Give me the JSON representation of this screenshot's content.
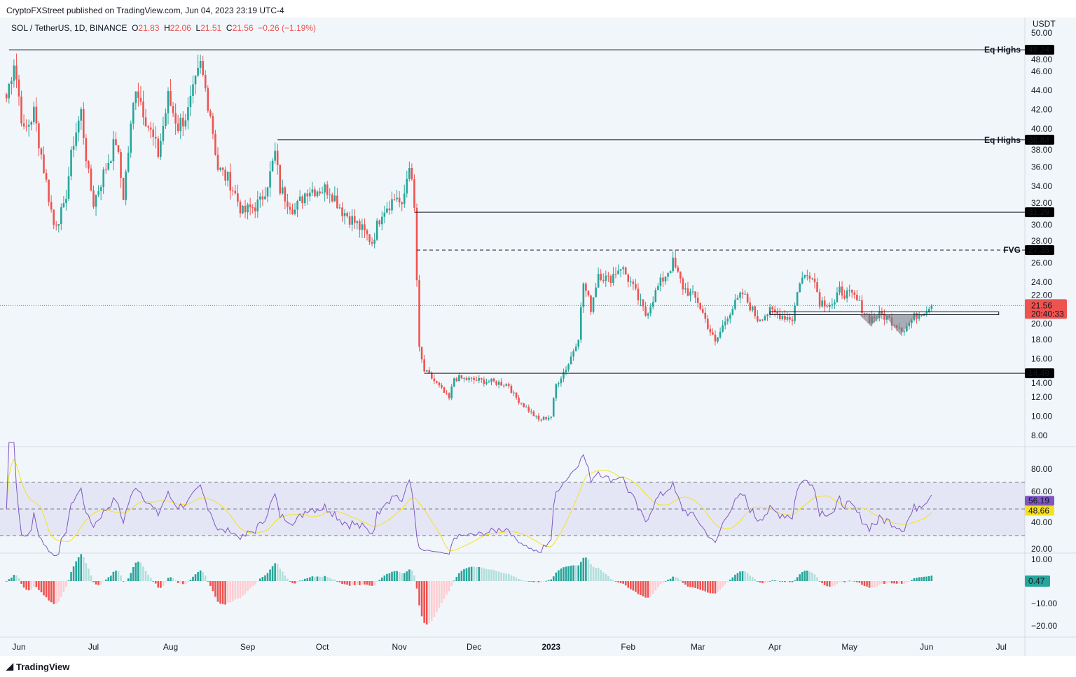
{
  "header": {
    "published": "CryptoFXStreet published on TradingView.com, Jun 04, 2023 23:19 UTC-4"
  },
  "legend": {
    "symbol": "SOL / TetherUS, 1D, BINANCE",
    "o_label": "O",
    "o": "21.83",
    "h_label": "H",
    "h": "22.06",
    "l_label": "L",
    "l": "21.51",
    "c_label": "C",
    "c": "21.56",
    "change": "−0.26 (−1.19%)"
  },
  "footer": {
    "brand": "TradingView"
  },
  "colors": {
    "up": "#26a69a",
    "down": "#ef5350",
    "rsi": "#7e57c2",
    "rsi_ma": "#f5e11f",
    "fvg": "#43a047",
    "eq": "#e53935"
  },
  "chart_data": {
    "type": "candlestick",
    "currency": "USDT",
    "price_axis": {
      "ticks": [
        "50.00",
        "48.00",
        "46.00",
        "44.00",
        "42.00",
        "40.00",
        "38.00",
        "36.00",
        "34.00",
        "32.00",
        "30.00",
        "28.00",
        "26.00",
        "24.00",
        "22.00",
        "20.00",
        "18.00",
        "16.00",
        "14.00",
        "12.00",
        "10.00",
        "8.00"
      ],
      "range": [
        8,
        50
      ]
    },
    "time_axis": {
      "unit": "days since 2022-06-01",
      "labels": [
        {
          "t": 0,
          "label": "Jun"
        },
        {
          "t": 30,
          "label": "Jul"
        },
        {
          "t": 61,
          "label": "Aug"
        },
        {
          "t": 92,
          "label": "Sep"
        },
        {
          "t": 122,
          "label": "Oct"
        },
        {
          "t": 153,
          "label": "Nov"
        },
        {
          "t": 183,
          "label": "Dec"
        },
        {
          "t": 214,
          "label": "2023",
          "bold": true
        },
        {
          "t": 245,
          "label": "Feb"
        },
        {
          "t": 273,
          "label": "Mar"
        },
        {
          "t": 304,
          "label": "Apr"
        },
        {
          "t": 334,
          "label": "May"
        },
        {
          "t": 365,
          "label": "Jun"
        },
        {
          "t": 395,
          "label": "Jul"
        }
      ]
    },
    "close_waypoints": [
      [
        -5,
        43.2
      ],
      [
        -2,
        47.2
      ],
      [
        2,
        39.5
      ],
      [
        6,
        41.7
      ],
      [
        11,
        34.4
      ],
      [
        14,
        30
      ],
      [
        18,
        31.5
      ],
      [
        22,
        38.8
      ],
      [
        25,
        41.7
      ],
      [
        28,
        35
      ],
      [
        30,
        32.3
      ],
      [
        35,
        36
      ],
      [
        39,
        38.8
      ],
      [
        42,
        33
      ],
      [
        47,
        44.7
      ],
      [
        52,
        40.3
      ],
      [
        56,
        37.4
      ],
      [
        60,
        43.2
      ],
      [
        64,
        40.3
      ],
      [
        68,
        41.7
      ],
      [
        73,
        46.5
      ],
      [
        77,
        41.7
      ],
      [
        80,
        35.9
      ],
      [
        85,
        34.4
      ],
      [
        90,
        31.2
      ],
      [
        97,
        32.3
      ],
      [
        101,
        35.2
      ],
      [
        103,
        37.4
      ],
      [
        105,
        33.7
      ],
      [
        111,
        31.5
      ],
      [
        116,
        33.7
      ],
      [
        125,
        33.7
      ],
      [
        130,
        31.5
      ],
      [
        136,
        30
      ],
      [
        142,
        28.2
      ],
      [
        146,
        31.5
      ],
      [
        152,
        33
      ],
      [
        154,
        31.5
      ],
      [
        157,
        36.6
      ],
      [
        159,
        31.5
      ],
      [
        160,
        24.2
      ],
      [
        161,
        16.9
      ],
      [
        163,
        14.7
      ],
      [
        166,
        14
      ],
      [
        173,
        11.8
      ],
      [
        175,
        14
      ],
      [
        190,
        13.6
      ],
      [
        197,
        13.3
      ],
      [
        199,
        12.2
      ],
      [
        209,
        9.6
      ],
      [
        214,
        10
      ],
      [
        216,
        13.3
      ],
      [
        221,
        15.5
      ],
      [
        225,
        18.4
      ],
      [
        227,
        23.9
      ],
      [
        230,
        21.3
      ],
      [
        233,
        25
      ],
      [
        237,
        24.2
      ],
      [
        242,
        25.7
      ],
      [
        246,
        23.9
      ],
      [
        252,
        20.6
      ],
      [
        257,
        23.5
      ],
      [
        263,
        26
      ],
      [
        267,
        23.5
      ],
      [
        273,
        22
      ],
      [
        280,
        17.6
      ],
      [
        285,
        20.6
      ],
      [
        291,
        22.8
      ],
      [
        297,
        20.2
      ],
      [
        302,
        20.9
      ],
      [
        311,
        20.2
      ],
      [
        314,
        24.2
      ],
      [
        319,
        25
      ],
      [
        322,
        22
      ],
      [
        328,
        21.7
      ],
      [
        330,
        23.1
      ],
      [
        336,
        22.4
      ],
      [
        342,
        20.2
      ],
      [
        347,
        20.6
      ],
      [
        356,
        19.1
      ],
      [
        361,
        20.6
      ],
      [
        367,
        21.56
      ]
    ],
    "levels": [
      {
        "price": 48.24,
        "label": "48.24",
        "tag": "Eq Highs",
        "from_t": -4,
        "style": "solid"
      },
      {
        "price": 38.84,
        "label": "38.84",
        "tag": "Eq Highs",
        "from_t": 104,
        "style": "solid"
      },
      {
        "price": 31.29,
        "label": "31.29",
        "tag": "",
        "from_t": 159,
        "style": "solid"
      },
      {
        "price": 27.35,
        "label": "27.35",
        "tag": "FVG",
        "from_t": 160,
        "style": "dashed"
      },
      {
        "price": 14.49,
        "label": "14.49",
        "tag": "",
        "from_t": 163,
        "style": "solid"
      }
    ],
    "zone": {
      "from_t": 302,
      "to_t": 394,
      "low": 20.6,
      "high": 20.9
    },
    "last_price": {
      "value": "21.56",
      "countdown": "20:40:33"
    },
    "rsi": {
      "ticks": [
        "80.00",
        "60.00",
        "40.00",
        "20.00"
      ],
      "band": [
        30,
        70
      ],
      "last": "56.19",
      "ma_last": "48.66"
    },
    "macd_hist": {
      "ticks": [
        "10.00",
        "−10.00",
        "−20.00"
      ],
      "last": "0.47"
    }
  }
}
